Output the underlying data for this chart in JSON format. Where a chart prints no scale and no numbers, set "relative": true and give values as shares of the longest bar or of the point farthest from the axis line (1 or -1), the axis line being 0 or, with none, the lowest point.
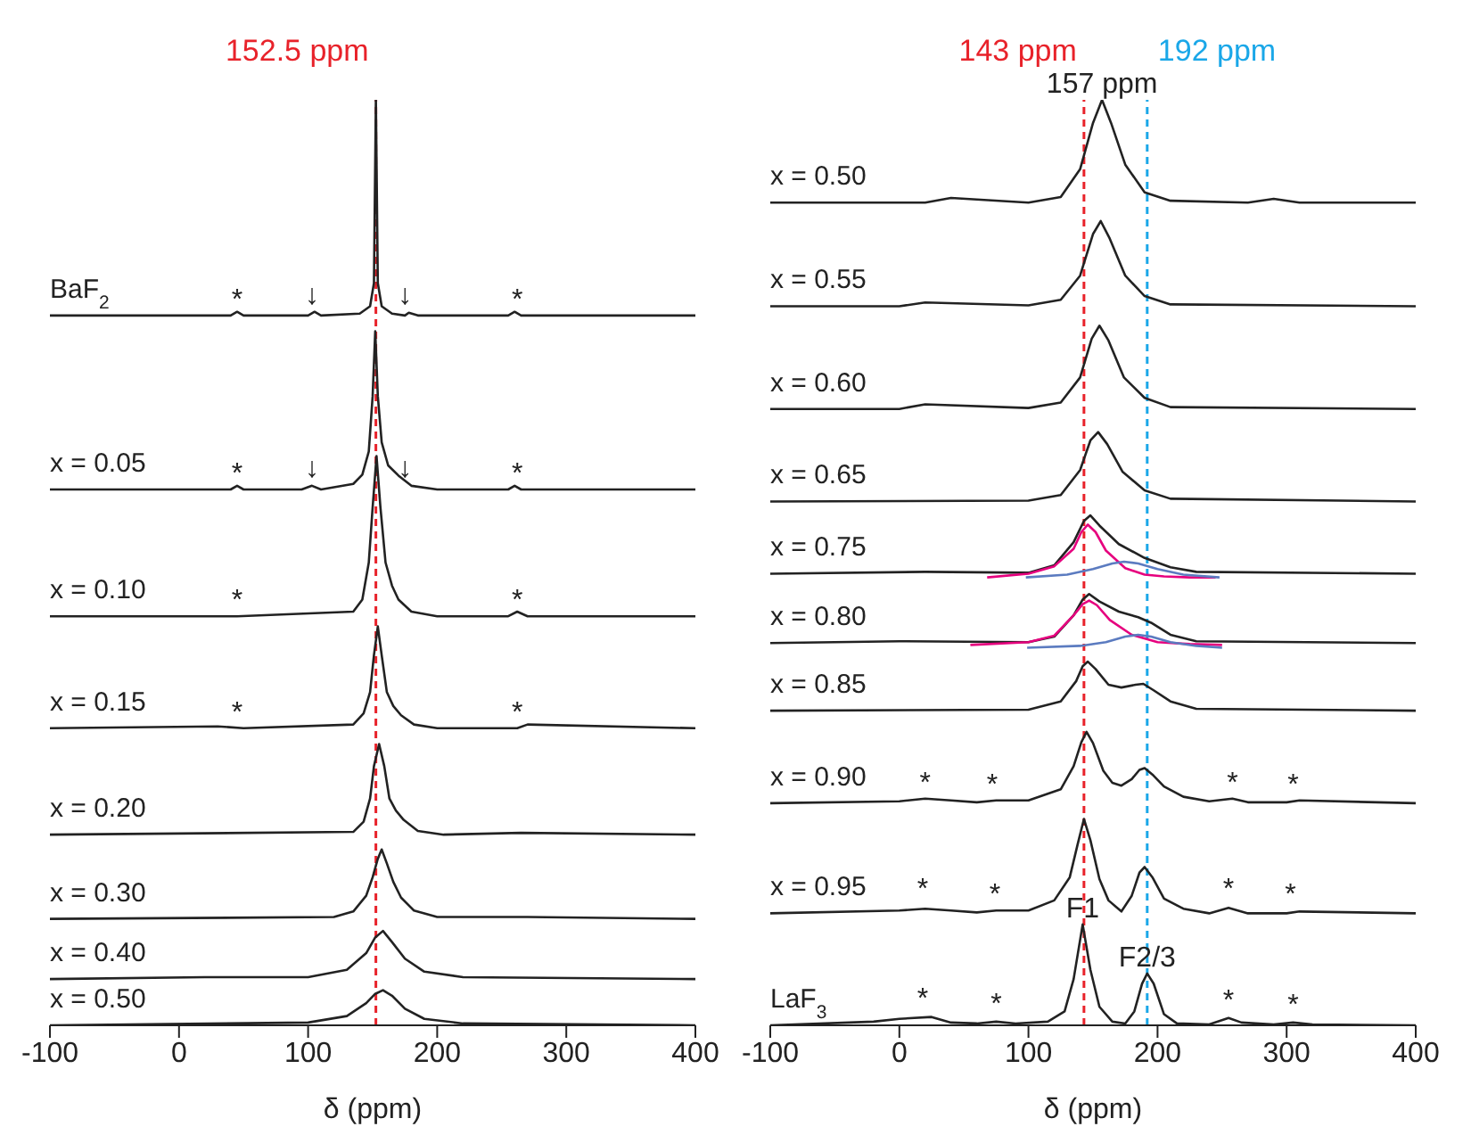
{
  "chart_data": [
    {
      "type": "line",
      "relative": true,
      "xlabel": "δ (ppm)",
      "xlim": [
        -100,
        400
      ],
      "xticks": [
        -100,
        0,
        100,
        200,
        300,
        400
      ],
      "grid": false,
      "legend": false,
      "marker": "none",
      "line_style": "solid",
      "series": [
        {
          "name": "BaF$_{2}$",
          "color": "#222222",
          "x": [
            -100,
            40,
            45,
            50,
            100,
            105,
            110,
            140,
            148,
            151,
            152.5,
            154,
            157,
            165,
            175,
            178,
            185,
            255,
            260,
            265,
            400
          ],
          "values": [
            0.767,
            0.767,
            0.771,
            0.767,
            0.767,
            0.771,
            0.767,
            0.769,
            0.777,
            0.802,
            1.0,
            0.802,
            0.777,
            0.769,
            0.767,
            0.77,
            0.767,
            0.767,
            0.771,
            0.767,
            0.767
          ]
        },
        {
          "name": "x = 0.05",
          "color": "#222222",
          "x": [
            -100,
            40,
            45,
            50,
            95,
            103,
            110,
            135,
            142,
            147,
            150,
            152,
            154,
            157,
            162,
            170,
            180,
            200,
            255,
            260,
            265,
            400
          ],
          "values": [
            0.579,
            0.579,
            0.583,
            0.579,
            0.579,
            0.583,
            0.579,
            0.585,
            0.595,
            0.62,
            0.68,
            0.75,
            0.68,
            0.63,
            0.605,
            0.594,
            0.583,
            0.579,
            0.579,
            0.583,
            0.579,
            0.579
          ]
        },
        {
          "name": "x = 0.10",
          "color": "#222222",
          "x": [
            -100,
            45,
            135,
            142,
            147,
            150,
            153,
            156,
            160,
            165,
            170,
            180,
            200,
            255,
            262,
            270,
            400
          ],
          "values": [
            0.442,
            0.442,
            0.447,
            0.46,
            0.5,
            0.56,
            0.615,
            0.56,
            0.5,
            0.475,
            0.46,
            0.447,
            0.442,
            0.442,
            0.447,
            0.442,
            0.442
          ]
        },
        {
          "name": "x = 0.15",
          "color": "#222222",
          "x": [
            -100,
            30,
            50,
            135,
            143,
            148,
            151,
            154,
            157,
            161,
            166,
            172,
            182,
            200,
            262,
            270,
            400
          ],
          "values": [
            0.321,
            0.323,
            0.321,
            0.325,
            0.337,
            0.36,
            0.4,
            0.431,
            0.4,
            0.36,
            0.345,
            0.335,
            0.325,
            0.321,
            0.321,
            0.325,
            0.321
          ]
        },
        {
          "name": "x = 0.20",
          "color": "#222222",
          "x": [
            -100,
            135,
            143,
            148,
            151,
            155,
            159,
            163,
            168,
            174,
            185,
            205,
            265,
            400
          ],
          "values": [
            0.206,
            0.209,
            0.22,
            0.245,
            0.28,
            0.304,
            0.28,
            0.245,
            0.232,
            0.222,
            0.21,
            0.206,
            0.208,
            0.206
          ]
        },
        {
          "name": "x = 0.30",
          "color": "#222222",
          "x": [
            -100,
            120,
            135,
            145,
            150,
            154,
            157,
            161,
            166,
            172,
            182,
            200,
            270,
            400
          ],
          "values": [
            0.115,
            0.117,
            0.123,
            0.14,
            0.16,
            0.18,
            0.19,
            0.175,
            0.155,
            0.138,
            0.124,
            0.117,
            0.117,
            0.115
          ]
        },
        {
          "name": "x = 0.40",
          "color": "#222222",
          "x": [
            -100,
            20,
            100,
            130,
            145,
            152,
            158,
            165,
            175,
            190,
            220,
            400
          ],
          "values": [
            0.05,
            0.052,
            0.052,
            0.06,
            0.078,
            0.095,
            0.102,
            0.09,
            0.072,
            0.058,
            0.052,
            0.05
          ]
        },
        {
          "name": "x = 0.50",
          "color": "#222222",
          "x": [
            -100,
            100,
            130,
            145,
            152,
            158,
            165,
            175,
            190,
            220,
            400
          ],
          "values": [
            0,
            0.003,
            0.01,
            0.024,
            0.034,
            0.038,
            0.032,
            0.018,
            0.007,
            0.002,
            0
          ]
        }
      ],
      "ref_lines": [
        {
          "axis": "x",
          "value": 152.5,
          "label": "152.5 ppm",
          "color": "#e8222a",
          "line_style": "dashed"
        }
      ],
      "annotations": [
        {
          "text": "*",
          "x": 45,
          "y": 0.767
        },
        {
          "text": "*",
          "x": 262,
          "y": 0.767
        },
        {
          "text": "↓",
          "x": 103,
          "y": 0.772
        },
        {
          "text": "↓",
          "x": 175,
          "y": 0.772
        },
        {
          "text": "*",
          "x": 45,
          "y": 0.579
        },
        {
          "text": "*",
          "x": 262,
          "y": 0.579
        },
        {
          "text": "↓",
          "x": 103,
          "y": 0.585
        },
        {
          "text": "↓",
          "x": 175,
          "y": 0.585
        },
        {
          "text": "*",
          "x": 45,
          "y": 0.442
        },
        {
          "text": "*",
          "x": 262,
          "y": 0.442
        },
        {
          "text": "*",
          "x": 45,
          "y": 0.321
        },
        {
          "text": "*",
          "x": 262,
          "y": 0.321
        }
      ]
    },
    {
      "type": "line",
      "relative": true,
      "xlabel": "δ (ppm)",
      "xlim": [
        -100,
        400
      ],
      "xticks": [
        -100,
        0,
        100,
        200,
        300,
        400
      ],
      "grid": false,
      "legend": false,
      "marker": "none",
      "line_style": "solid",
      "series": [
        {
          "name": "x = 0.50",
          "color": "#222222",
          "x": [
            -100,
            20,
            40,
            100,
            125,
            140,
            150,
            157,
            164,
            175,
            190,
            210,
            270,
            290,
            310,
            400
          ],
          "values": [
            0.889,
            0.889,
            0.894,
            0.889,
            0.895,
            0.925,
            0.975,
            1.0,
            0.975,
            0.93,
            0.9,
            0.891,
            0.889,
            0.893,
            0.889,
            0.889
          ]
        },
        {
          "name": "x = 0.55",
          "color": "#222222",
          "x": [
            -100,
            0,
            20,
            100,
            125,
            140,
            150,
            156,
            163,
            175,
            190,
            210,
            400
          ],
          "values": [
            0.777,
            0.777,
            0.781,
            0.778,
            0.784,
            0.81,
            0.855,
            0.869,
            0.85,
            0.81,
            0.788,
            0.779,
            0.777
          ]
        },
        {
          "name": "x = 0.60",
          "color": "#222222",
          "x": [
            -100,
            0,
            20,
            100,
            125,
            140,
            149,
            155,
            162,
            174,
            190,
            210,
            400
          ],
          "values": [
            0.666,
            0.666,
            0.671,
            0.667,
            0.673,
            0.7,
            0.742,
            0.756,
            0.74,
            0.7,
            0.678,
            0.668,
            0.666
          ]
        },
        {
          "name": "x = 0.65",
          "color": "#222222",
          "x": [
            -100,
            100,
            125,
            140,
            148,
            154,
            161,
            173,
            190,
            210,
            400
          ],
          "values": [
            0.566,
            0.567,
            0.573,
            0.6,
            0.632,
            0.641,
            0.628,
            0.598,
            0.578,
            0.569,
            0.566
          ]
        },
        {
          "name": "x = 0.75",
          "color": "#222222",
          "x": [
            -100,
            20,
            100,
            120,
            135,
            143,
            148,
            155,
            170,
            190,
            210,
            230,
            400
          ],
          "values": [
            0.488,
            0.49,
            0.489,
            0.497,
            0.522,
            0.545,
            0.551,
            0.54,
            0.52,
            0.505,
            0.495,
            0.49,
            0.488
          ]
        },
        {
          "color": "#e6007e",
          "x": [
            68,
            100,
            120,
            135,
            141,
            146,
            152,
            160,
            175,
            190,
            205,
            225,
            245
          ],
          "values": [
            0.484,
            0.488,
            0.496,
            0.515,
            0.533,
            0.541,
            0.533,
            0.513,
            0.494,
            0.487,
            0.485,
            0.484,
            0.484
          ]
        },
        {
          "color": "#5b7bc0",
          "x": [
            98,
            130,
            150,
            165,
            174,
            185,
            200,
            220,
            248
          ],
          "values": [
            0.484,
            0.487,
            0.493,
            0.499,
            0.501,
            0.499,
            0.493,
            0.487,
            0.484
          ]
        },
        {
          "name": "x = 0.80",
          "color": "#222222",
          "x": [
            -100,
            0,
            100,
            120,
            135,
            142,
            147,
            155,
            170,
            185,
            195,
            210,
            230,
            400
          ],
          "values": [
            0.413,
            0.415,
            0.414,
            0.42,
            0.443,
            0.46,
            0.466,
            0.458,
            0.447,
            0.441,
            0.435,
            0.422,
            0.415,
            0.413
          ]
        },
        {
          "color": "#e6007e",
          "x": [
            55,
            100,
            120,
            135,
            142,
            147,
            153,
            163,
            180,
            200,
            225,
            250
          ],
          "values": [
            0.411,
            0.414,
            0.421,
            0.443,
            0.455,
            0.459,
            0.454,
            0.438,
            0.422,
            0.414,
            0.412,
            0.411
          ]
        },
        {
          "color": "#5b7bc0",
          "x": [
            99,
            140,
            160,
            175,
            185,
            195,
            210,
            230,
            250
          ],
          "values": [
            0.408,
            0.41,
            0.414,
            0.42,
            0.422,
            0.42,
            0.414,
            0.41,
            0.408
          ]
        },
        {
          "name": "x = 0.85",
          "color": "#222222",
          "x": [
            -100,
            100,
            125,
            137,
            142,
            146,
            152,
            162,
            172,
            183,
            189,
            197,
            210,
            230,
            400
          ],
          "values": [
            0.34,
            0.341,
            0.35,
            0.372,
            0.388,
            0.393,
            0.385,
            0.368,
            0.365,
            0.368,
            0.369,
            0.362,
            0.35,
            0.342,
            0.34
          ]
        },
        {
          "name": "x = 0.90",
          "color": "#222222",
          "x": [
            -100,
            0,
            20,
            40,
            60,
            75,
            100,
            125,
            135,
            141,
            145,
            150,
            158,
            165,
            172,
            180,
            186,
            190,
            196,
            205,
            220,
            240,
            258,
            270,
            300,
            310,
            400
          ],
          "values": [
            0.24,
            0.242,
            0.245,
            0.243,
            0.241,
            0.243,
            0.243,
            0.255,
            0.28,
            0.306,
            0.317,
            0.305,
            0.275,
            0.262,
            0.259,
            0.266,
            0.276,
            0.278,
            0.271,
            0.258,
            0.247,
            0.242,
            0.245,
            0.241,
            0.241,
            0.243,
            0.24
          ]
        },
        {
          "name": "x = 0.95",
          "color": "#222222",
          "x": [
            -100,
            0,
            20,
            40,
            60,
            75,
            100,
            120,
            132,
            138,
            143,
            148,
            155,
            162,
            172,
            180,
            186,
            190,
            196,
            205,
            220,
            240,
            255,
            270,
            300,
            310,
            400
          ],
          "values": [
            0.121,
            0.124,
            0.126,
            0.124,
            0.122,
            0.124,
            0.124,
            0.135,
            0.16,
            0.195,
            0.223,
            0.2,
            0.158,
            0.135,
            0.123,
            0.14,
            0.165,
            0.171,
            0.16,
            0.137,
            0.126,
            0.121,
            0.127,
            0.121,
            0.121,
            0.123,
            0.121
          ]
        },
        {
          "name": "LaF$_{3}$",
          "color": "#222222",
          "x": [
            -100,
            -20,
            0,
            25,
            40,
            60,
            75,
            90,
            115,
            128,
            135,
            142,
            148,
            155,
            165,
            175,
            182,
            188,
            192,
            197,
            205,
            215,
            240,
            255,
            265,
            290,
            305,
            320,
            400
          ],
          "values": [
            0,
            0.004,
            0.007,
            0.009,
            0.003,
            0.002,
            0.004,
            0.002,
            0.004,
            0.015,
            0.05,
            0.109,
            0.06,
            0.02,
            0.004,
            0.002,
            0.015,
            0.045,
            0.056,
            0.045,
            0.012,
            0.002,
            0.001,
            0.008,
            0.003,
            0.001,
            0.003,
            0.001,
            0
          ]
        }
      ],
      "ref_lines": [
        {
          "axis": "x",
          "value": 143,
          "label": "143 ppm",
          "color": "#e8222a",
          "line_style": "dashed"
        },
        {
          "axis": "x",
          "value": 192,
          "label": "192 ppm",
          "color": "#1aa7e8",
          "line_style": "dashed"
        }
      ],
      "annotations": [
        {
          "text": "157 ppm",
          "x": 157,
          "y": 1.0
        },
        {
          "text": "*",
          "x": 20,
          "y": 0.245
        },
        {
          "text": "*",
          "x": 72,
          "y": 0.243
        },
        {
          "text": "*",
          "x": 258,
          "y": 0.245
        },
        {
          "text": "*",
          "x": 305,
          "y": 0.243
        },
        {
          "text": "*",
          "x": 18,
          "y": 0.13
        },
        {
          "text": "*",
          "x": 74,
          "y": 0.124
        },
        {
          "text": "*",
          "x": 255,
          "y": 0.13
        },
        {
          "text": "*",
          "x": 303,
          "y": 0.124
        },
        {
          "text": "*",
          "x": 18,
          "y": 0.012
        },
        {
          "text": "*",
          "x": 75,
          "y": 0.006
        },
        {
          "text": "*",
          "x": 255,
          "y": 0.01
        },
        {
          "text": "*",
          "x": 305,
          "y": 0.005
        },
        {
          "text": "F1",
          "x": 142,
          "y": 0.109
        },
        {
          "text": "F2/3",
          "x": 192,
          "y": 0.056
        }
      ]
    }
  ]
}
